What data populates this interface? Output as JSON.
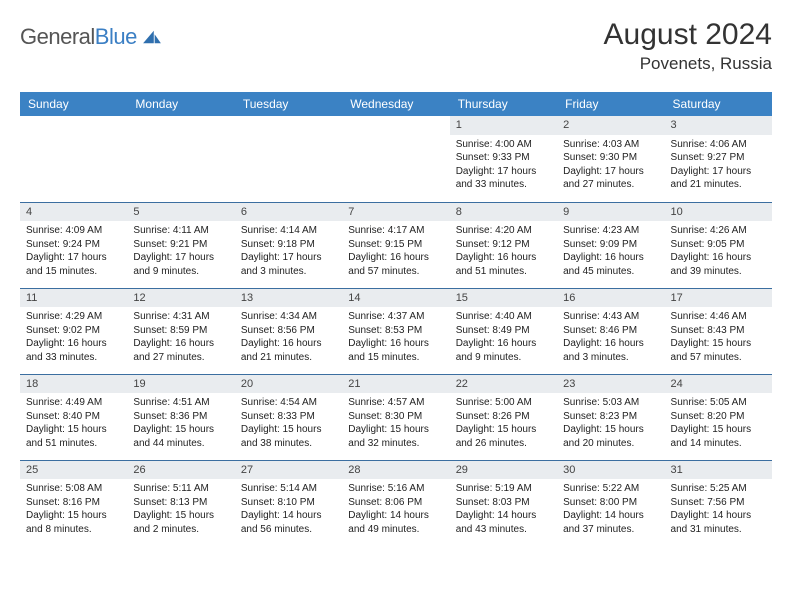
{
  "brand": {
    "name_a": "General",
    "name_b": "Blue"
  },
  "title": {
    "month": "August 2024",
    "location": "Povenets, Russia"
  },
  "colors": {
    "header_bg": "#3b82c4",
    "row_border": "#3b6ea0",
    "daynum_bg": "#e9ecef"
  },
  "weekdays": [
    "Sunday",
    "Monday",
    "Tuesday",
    "Wednesday",
    "Thursday",
    "Friday",
    "Saturday"
  ],
  "weeks": [
    [
      {
        "n": "",
        "sr": "",
        "ss": "",
        "dl": ""
      },
      {
        "n": "",
        "sr": "",
        "ss": "",
        "dl": ""
      },
      {
        "n": "",
        "sr": "",
        "ss": "",
        "dl": ""
      },
      {
        "n": "",
        "sr": "",
        "ss": "",
        "dl": ""
      },
      {
        "n": "1",
        "sr": "Sunrise: 4:00 AM",
        "ss": "Sunset: 9:33 PM",
        "dl": "Daylight: 17 hours and 33 minutes."
      },
      {
        "n": "2",
        "sr": "Sunrise: 4:03 AM",
        "ss": "Sunset: 9:30 PM",
        "dl": "Daylight: 17 hours and 27 minutes."
      },
      {
        "n": "3",
        "sr": "Sunrise: 4:06 AM",
        "ss": "Sunset: 9:27 PM",
        "dl": "Daylight: 17 hours and 21 minutes."
      }
    ],
    [
      {
        "n": "4",
        "sr": "Sunrise: 4:09 AM",
        "ss": "Sunset: 9:24 PM",
        "dl": "Daylight: 17 hours and 15 minutes."
      },
      {
        "n": "5",
        "sr": "Sunrise: 4:11 AM",
        "ss": "Sunset: 9:21 PM",
        "dl": "Daylight: 17 hours and 9 minutes."
      },
      {
        "n": "6",
        "sr": "Sunrise: 4:14 AM",
        "ss": "Sunset: 9:18 PM",
        "dl": "Daylight: 17 hours and 3 minutes."
      },
      {
        "n": "7",
        "sr": "Sunrise: 4:17 AM",
        "ss": "Sunset: 9:15 PM",
        "dl": "Daylight: 16 hours and 57 minutes."
      },
      {
        "n": "8",
        "sr": "Sunrise: 4:20 AM",
        "ss": "Sunset: 9:12 PM",
        "dl": "Daylight: 16 hours and 51 minutes."
      },
      {
        "n": "9",
        "sr": "Sunrise: 4:23 AM",
        "ss": "Sunset: 9:09 PM",
        "dl": "Daylight: 16 hours and 45 minutes."
      },
      {
        "n": "10",
        "sr": "Sunrise: 4:26 AM",
        "ss": "Sunset: 9:05 PM",
        "dl": "Daylight: 16 hours and 39 minutes."
      }
    ],
    [
      {
        "n": "11",
        "sr": "Sunrise: 4:29 AM",
        "ss": "Sunset: 9:02 PM",
        "dl": "Daylight: 16 hours and 33 minutes."
      },
      {
        "n": "12",
        "sr": "Sunrise: 4:31 AM",
        "ss": "Sunset: 8:59 PM",
        "dl": "Daylight: 16 hours and 27 minutes."
      },
      {
        "n": "13",
        "sr": "Sunrise: 4:34 AM",
        "ss": "Sunset: 8:56 PM",
        "dl": "Daylight: 16 hours and 21 minutes."
      },
      {
        "n": "14",
        "sr": "Sunrise: 4:37 AM",
        "ss": "Sunset: 8:53 PM",
        "dl": "Daylight: 16 hours and 15 minutes."
      },
      {
        "n": "15",
        "sr": "Sunrise: 4:40 AM",
        "ss": "Sunset: 8:49 PM",
        "dl": "Daylight: 16 hours and 9 minutes."
      },
      {
        "n": "16",
        "sr": "Sunrise: 4:43 AM",
        "ss": "Sunset: 8:46 PM",
        "dl": "Daylight: 16 hours and 3 minutes."
      },
      {
        "n": "17",
        "sr": "Sunrise: 4:46 AM",
        "ss": "Sunset: 8:43 PM",
        "dl": "Daylight: 15 hours and 57 minutes."
      }
    ],
    [
      {
        "n": "18",
        "sr": "Sunrise: 4:49 AM",
        "ss": "Sunset: 8:40 PM",
        "dl": "Daylight: 15 hours and 51 minutes."
      },
      {
        "n": "19",
        "sr": "Sunrise: 4:51 AM",
        "ss": "Sunset: 8:36 PM",
        "dl": "Daylight: 15 hours and 44 minutes."
      },
      {
        "n": "20",
        "sr": "Sunrise: 4:54 AM",
        "ss": "Sunset: 8:33 PM",
        "dl": "Daylight: 15 hours and 38 minutes."
      },
      {
        "n": "21",
        "sr": "Sunrise: 4:57 AM",
        "ss": "Sunset: 8:30 PM",
        "dl": "Daylight: 15 hours and 32 minutes."
      },
      {
        "n": "22",
        "sr": "Sunrise: 5:00 AM",
        "ss": "Sunset: 8:26 PM",
        "dl": "Daylight: 15 hours and 26 minutes."
      },
      {
        "n": "23",
        "sr": "Sunrise: 5:03 AM",
        "ss": "Sunset: 8:23 PM",
        "dl": "Daylight: 15 hours and 20 minutes."
      },
      {
        "n": "24",
        "sr": "Sunrise: 5:05 AM",
        "ss": "Sunset: 8:20 PM",
        "dl": "Daylight: 15 hours and 14 minutes."
      }
    ],
    [
      {
        "n": "25",
        "sr": "Sunrise: 5:08 AM",
        "ss": "Sunset: 8:16 PM",
        "dl": "Daylight: 15 hours and 8 minutes."
      },
      {
        "n": "26",
        "sr": "Sunrise: 5:11 AM",
        "ss": "Sunset: 8:13 PM",
        "dl": "Daylight: 15 hours and 2 minutes."
      },
      {
        "n": "27",
        "sr": "Sunrise: 5:14 AM",
        "ss": "Sunset: 8:10 PM",
        "dl": "Daylight: 14 hours and 56 minutes."
      },
      {
        "n": "28",
        "sr": "Sunrise: 5:16 AM",
        "ss": "Sunset: 8:06 PM",
        "dl": "Daylight: 14 hours and 49 minutes."
      },
      {
        "n": "29",
        "sr": "Sunrise: 5:19 AM",
        "ss": "Sunset: 8:03 PM",
        "dl": "Daylight: 14 hours and 43 minutes."
      },
      {
        "n": "30",
        "sr": "Sunrise: 5:22 AM",
        "ss": "Sunset: 8:00 PM",
        "dl": "Daylight: 14 hours and 37 minutes."
      },
      {
        "n": "31",
        "sr": "Sunrise: 5:25 AM",
        "ss": "Sunset: 7:56 PM",
        "dl": "Daylight: 14 hours and 31 minutes."
      }
    ]
  ]
}
